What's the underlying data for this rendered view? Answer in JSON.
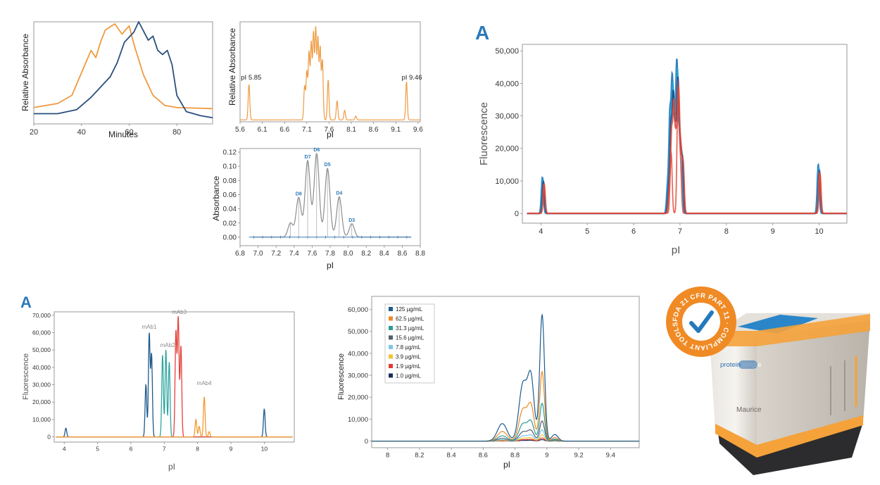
{
  "colors": {
    "orange": "#ef9a3f",
    "navy": "#29507c",
    "grey": "#8c8c8c",
    "blue": "#1e73b5",
    "accent_label": "#2c7ab8",
    "seal_orange": "#f08a24",
    "device_orange": "#f5a23a",
    "device_blue": "#2a86c8"
  },
  "chart_data": [
    {
      "id": "p1",
      "type": "line",
      "xlabel": "Minutes",
      "ylabel": "Relative Absorbance",
      "xlim": [
        20,
        95
      ],
      "ylim": [
        0,
        1
      ],
      "xticks": [
        "20",
        "40",
        "60",
        "80"
      ],
      "series": [
        {
          "name": "orange trace",
          "color": "#ef9a3f",
          "points": [
            [
              20,
              0.16
            ],
            [
              30,
              0.2
            ],
            [
              36,
              0.28
            ],
            [
              40,
              0.5
            ],
            [
              44,
              0.72
            ],
            [
              46,
              0.65
            ],
            [
              48,
              0.8
            ],
            [
              50,
              0.92
            ],
            [
              54,
              0.98
            ],
            [
              57,
              0.88
            ],
            [
              60,
              0.96
            ],
            [
              62,
              0.78
            ],
            [
              66,
              0.48
            ],
            [
              70,
              0.28
            ],
            [
              75,
              0.18
            ],
            [
              80,
              0.16
            ],
            [
              95,
              0.15
            ]
          ]
        },
        {
          "name": "navy trace",
          "color": "#29507c",
          "points": [
            [
              20,
              0.1
            ],
            [
              30,
              0.1
            ],
            [
              38,
              0.14
            ],
            [
              44,
              0.26
            ],
            [
              48,
              0.36
            ],
            [
              52,
              0.46
            ],
            [
              55,
              0.6
            ],
            [
              58,
              0.8
            ],
            [
              62,
              0.9
            ],
            [
              64,
              1.0
            ],
            [
              68,
              0.82
            ],
            [
              70,
              0.86
            ],
            [
              72,
              0.72
            ],
            [
              74,
              0.68
            ],
            [
              76,
              0.72
            ],
            [
              78,
              0.58
            ],
            [
              80,
              0.28
            ],
            [
              84,
              0.12
            ],
            [
              90,
              0.08
            ],
            [
              95,
              0.06
            ]
          ]
        }
      ]
    },
    {
      "id": "p2",
      "type": "line",
      "xlabel": "pI",
      "ylabel": "Relative Absorbance",
      "xlim": [
        5.6,
        9.65
      ],
      "ylim": [
        0,
        1
      ],
      "xticks": [
        "5.6",
        "6.1",
        "6.6",
        "7.1",
        "7.6",
        "8.1",
        "8.6",
        "9.1",
        "9.6"
      ],
      "annotations": [
        {
          "text": "pI 5.85",
          "x": 5.85,
          "y": 0.38
        },
        {
          "text": "pI 9.46",
          "x": 9.46,
          "y": 0.38
        }
      ],
      "series": [
        {
          "name": "orange trace",
          "color": "#ef9a3f",
          "baseline": 0.0,
          "peaks": [
            [
              5.8,
              0.37
            ],
            [
              7.05,
              0.35
            ],
            [
              7.1,
              0.5
            ],
            [
              7.15,
              0.7
            ],
            [
              7.2,
              0.8
            ],
            [
              7.25,
              0.9
            ],
            [
              7.3,
              0.95
            ],
            [
              7.35,
              0.85
            ],
            [
              7.4,
              0.75
            ],
            [
              7.45,
              0.62
            ],
            [
              7.58,
              0.42
            ],
            [
              7.78,
              0.2
            ],
            [
              7.95,
              0.1
            ],
            [
              8.2,
              0.04
            ],
            [
              9.34,
              0.4
            ]
          ]
        }
      ]
    },
    {
      "id": "p3",
      "type": "line",
      "xlabel": "pI",
      "ylabel": "Absorbance",
      "xlim": [
        6.8,
        8.8
      ],
      "ylim": [
        -0.012,
        0.125
      ],
      "xticks": [
        "6.8",
        "7.0",
        "7.2",
        "7.4",
        "7.6",
        "7.8",
        "8.0",
        "8.2",
        "8.4",
        "8.6",
        "8.8"
      ],
      "yticks": [
        "0.00",
        "0.02",
        "0.04",
        "0.06",
        "0.08",
        "0.10",
        "0.12"
      ],
      "peak_labels": [
        {
          "text": "D8",
          "x": 7.45,
          "y": 0.056
        },
        {
          "text": "D7",
          "x": 7.55,
          "y": 0.108
        },
        {
          "text": "D6",
          "x": 7.65,
          "y": 0.118
        },
        {
          "text": "D5",
          "x": 7.77,
          "y": 0.097
        },
        {
          "text": "D4",
          "x": 7.9,
          "y": 0.057
        },
        {
          "text": "D3",
          "x": 8.04,
          "y": 0.019
        }
      ],
      "series": [
        {
          "name": "grey trace",
          "color": "#8c8c8c",
          "baseline": 0.0,
          "peaks": [
            [
              7.36,
              0.02
            ],
            [
              7.45,
              0.056
            ],
            [
              7.55,
              0.108
            ],
            [
              7.65,
              0.118
            ],
            [
              7.77,
              0.097
            ],
            [
              7.9,
              0.057
            ],
            [
              8.04,
              0.019
            ]
          ]
        }
      ]
    },
    {
      "id": "p4",
      "type": "line",
      "panel_letter": "A",
      "xlabel": "pI",
      "ylabel": "Fluorescence",
      "xlim": [
        3.6,
        10.6
      ],
      "ylim": [
        -3000,
        52000
      ],
      "xticks": [
        "4",
        "5",
        "6",
        "7",
        "8",
        "9",
        "10"
      ],
      "yticks": [
        "0",
        "10,000",
        "20,000",
        "30,000",
        "40,000",
        "50,000"
      ],
      "series": [
        {
          "name": "overlay traces",
          "color": "#1e73b5",
          "baseline": 0,
          "peaks": [
            [
              4.05,
              11000
            ],
            [
              6.75,
              8000
            ],
            [
              6.8,
              29000
            ],
            [
              6.85,
              39000
            ],
            [
              6.9,
              26000
            ],
            [
              6.95,
              44000
            ],
            [
              7.0,
              22000
            ],
            [
              7.05,
              18000
            ],
            [
              10.0,
              15000
            ]
          ]
        },
        {
          "name": "overlay secondary",
          "color": "#e04a3c",
          "baseline": 0,
          "peaks": [
            [
              4.08,
              9000
            ],
            [
              6.82,
              20000
            ],
            [
              6.97,
              40000
            ],
            [
              7.02,
              15000
            ],
            [
              10.02,
              13000
            ]
          ]
        }
      ]
    },
    {
      "id": "p5",
      "type": "line",
      "panel_letter": "A",
      "xlabel": "pI",
      "ylabel": "Fluorescence",
      "xlim": [
        3.7,
        10.9
      ],
      "ylim": [
        -3000,
        72000
      ],
      "xticks": [
        "4",
        "5",
        "6",
        "7",
        "8",
        "9",
        "10"
      ],
      "yticks": [
        "0",
        "10,000",
        "20,000",
        "30,000",
        "40,000",
        "50,000",
        "60,000",
        "70,000"
      ],
      "peak_labels": [
        {
          "text": "mAb1",
          "x": 6.55,
          "y": 61500
        },
        {
          "text": "mAb2",
          "x": 7.1,
          "y": 51000
        },
        {
          "text": "mAb3",
          "x": 7.45,
          "y": 70000
        },
        {
          "text": "mAb4",
          "x": 8.2,
          "y": 29000
        }
      ],
      "series": [
        {
          "name": "mAb1",
          "color": "#1e5a8a",
          "baseline": 0,
          "peaks": [
            [
              4.05,
              5000
            ],
            [
              6.45,
              30000
            ],
            [
              6.55,
              59000
            ],
            [
              6.62,
              47000
            ],
            [
              10.0,
              16000
            ]
          ]
        },
        {
          "name": "mAb2",
          "color": "#2fa6a0",
          "baseline": 0,
          "peaks": [
            [
              6.95,
              47000
            ],
            [
              7.05,
              50000
            ],
            [
              7.15,
              43000
            ]
          ]
        },
        {
          "name": "mAb3",
          "color": "#e5403a",
          "baseline": 0,
          "peaks": [
            [
              7.35,
              60000
            ],
            [
              7.42,
              68000
            ],
            [
              7.5,
              52000
            ]
          ]
        },
        {
          "name": "mAb4",
          "color": "#f29a2e",
          "baseline": 0,
          "peaks": [
            [
              7.95,
              10000
            ],
            [
              8.05,
              6000
            ],
            [
              8.2,
              23000
            ],
            [
              8.35,
              3000
            ]
          ]
        }
      ]
    },
    {
      "id": "p6",
      "type": "line",
      "xlabel": "pI",
      "ylabel": "Fluorescence",
      "xlim": [
        7.9,
        9.58
      ],
      "ylim": [
        -3000,
        66000
      ],
      "xticks": [
        "8",
        "8.2",
        "8.4",
        "8.6",
        "8.8",
        "9",
        "9.2",
        "9.4"
      ],
      "yticks": [
        "0",
        "10,000",
        "20,000",
        "30,000",
        "40,000",
        "50,000",
        "60,000"
      ],
      "legend": [
        {
          "label": "125 µg/mL",
          "color": "#1d5c8f",
          "scale": 1.0
        },
        {
          "label": "62.5 µg/mL",
          "color": "#f08a24",
          "scale": 0.55
        },
        {
          "label": "31.3 µg/mL",
          "color": "#2a9d96",
          "scale": 0.3
        },
        {
          "label": "15.6 µg/mL",
          "color": "#555f6b",
          "scale": 0.16
        },
        {
          "label": "7.8 µg/mL",
          "color": "#7cc7e8",
          "scale": 0.09
        },
        {
          "label": "3.9 µg/mL",
          "color": "#f5c230",
          "scale": 0.05
        },
        {
          "label": "1.9 µg/mL",
          "color": "#e03c32",
          "scale": 0.025
        },
        {
          "label": "1.0 µg/mL",
          "color": "#1b2d5a",
          "scale": 0.012
        }
      ],
      "profile": [
        [
          8.72,
          8000,
          0.03
        ],
        [
          8.85,
          26000,
          0.025
        ],
        [
          8.9,
          28000,
          0.02
        ],
        [
          8.97,
          57500,
          0.015
        ],
        [
          9.05,
          3000,
          0.02
        ]
      ]
    }
  ],
  "seal": {
    "text": "FDA 21 CFR PART 11 · COMPLIANT TOOLS ·"
  },
  "device": {
    "brand_left": "protein",
    "brand_right": "simple",
    "model": "Maurice"
  }
}
